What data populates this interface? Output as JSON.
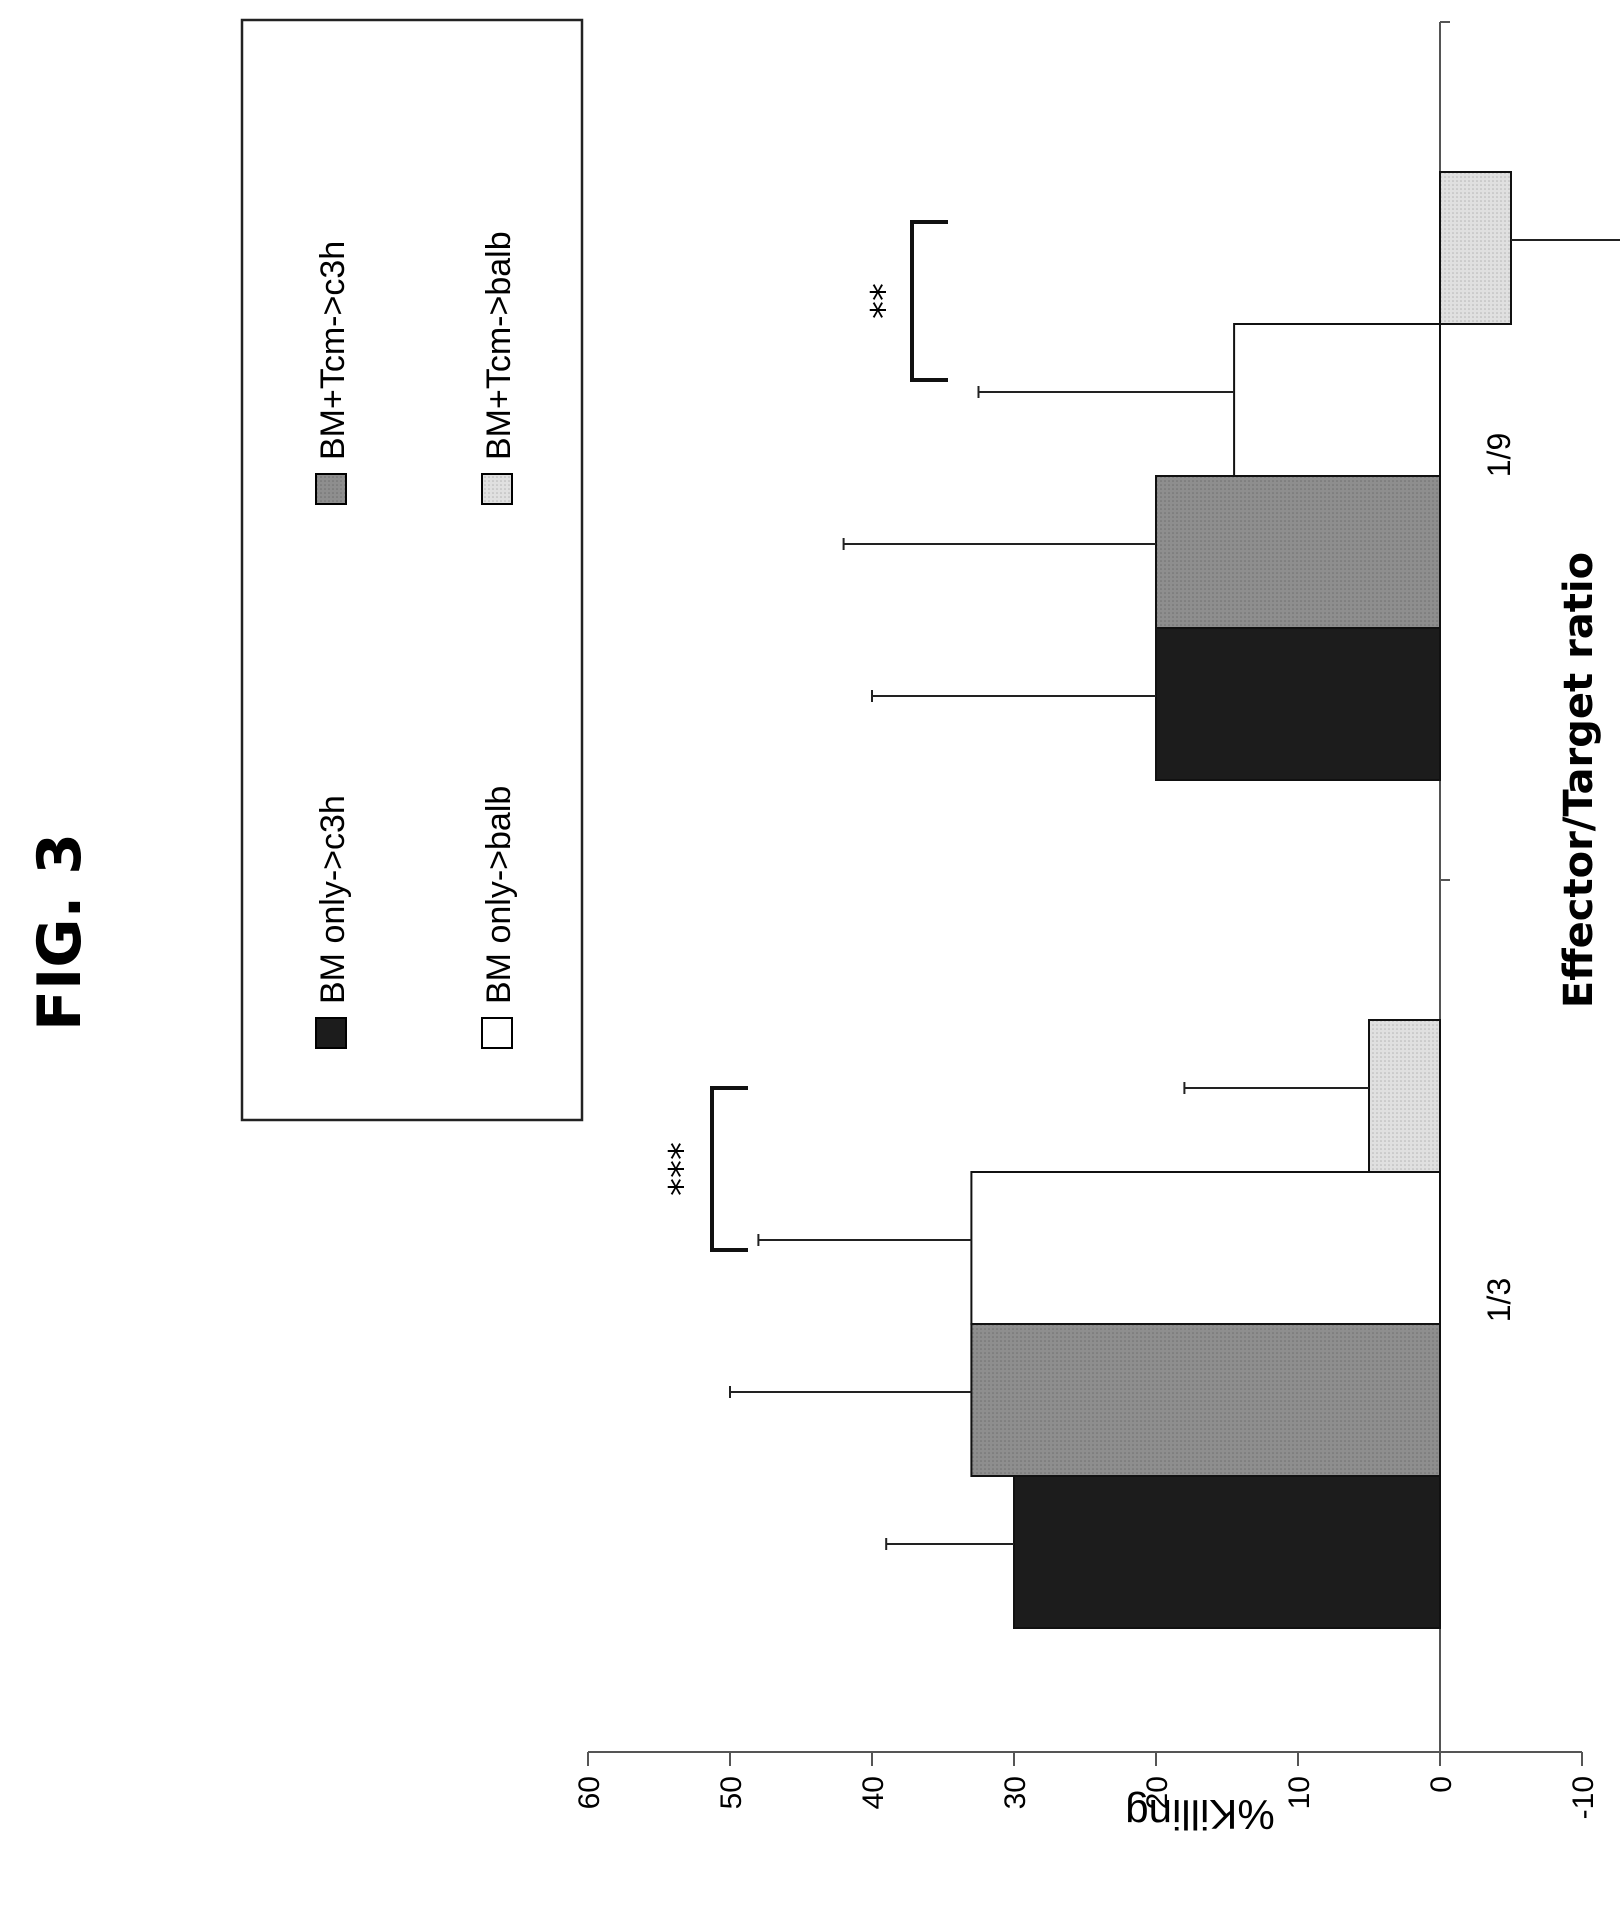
{
  "figure_title": "FIG. 3",
  "colors": {
    "BM only->c3h": "#1c1c1c",
    "BM+Tcm->c3h": "#8e8e8e",
    "BM only->balb": "#ffffff",
    "BM+Tcm->balb": "#d6d6d6",
    "axis": "#555555"
  },
  "chart_data": {
    "type": "bar",
    "title": "",
    "xlabel": "Effector/Target ratio",
    "ylabel": "%Killing",
    "ylim": [
      -10,
      60
    ],
    "yticks": [
      60,
      50,
      40,
      30,
      20,
      10,
      0,
      -10
    ],
    "categories": [
      "1/3",
      "1/9"
    ],
    "series": [
      {
        "name": "BM only->c3h",
        "values": [
          30,
          20
        ],
        "error": [
          9,
          20
        ]
      },
      {
        "name": "BM+Tcm->c3h",
        "values": [
          33,
          20
        ],
        "error": [
          17,
          22
        ]
      },
      {
        "name": "BM only->balb",
        "values": [
          33,
          14.5
        ],
        "error": [
          15,
          18
        ]
      },
      {
        "name": "BM+Tcm->balb",
        "values": [
          5,
          -5
        ],
        "error": [
          13,
          9
        ]
      }
    ],
    "significance": [
      {
        "category": "1/3",
        "label": "***"
      },
      {
        "category": "1/9",
        "label": "**"
      }
    ],
    "legend": {
      "placement": "top",
      "items": [
        "BM only->c3h",
        "BM+Tcm->c3h",
        "BM only->balb",
        "BM+Tcm->balb"
      ]
    },
    "grid": false
  }
}
